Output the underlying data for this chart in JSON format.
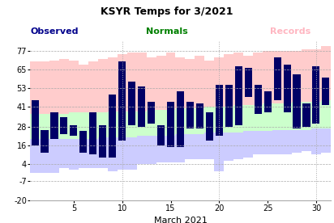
{
  "title": "KSYR Temps for 3/2021",
  "xlabel": "March 2021",
  "legend_labels": [
    "Observed",
    "Normals",
    "Records"
  ],
  "ylim": [
    -20,
    84
  ],
  "yticks": [
    -20,
    -7,
    4,
    16,
    28,
    41,
    53,
    65,
    77
  ],
  "days": [
    1,
    2,
    3,
    4,
    5,
    6,
    7,
    8,
    9,
    10,
    11,
    12,
    13,
    14,
    15,
    16,
    17,
    18,
    19,
    20,
    21,
    22,
    23,
    24,
    25,
    26,
    27,
    28,
    29,
    30,
    31
  ],
  "obs_high": [
    45,
    26,
    37,
    34,
    29,
    25,
    37,
    29,
    49,
    70,
    57,
    54,
    44,
    29,
    44,
    51,
    44,
    43,
    37,
    55,
    55,
    67,
    66,
    55,
    51,
    73,
    68,
    62,
    43,
    67,
    60
  ],
  "obs_low": [
    16,
    11,
    20,
    23,
    22,
    11,
    10,
    8,
    8,
    19,
    29,
    28,
    30,
    16,
    15,
    15,
    27,
    27,
    19,
    22,
    28,
    29,
    47,
    36,
    37,
    45,
    37,
    27,
    28,
    30,
    42
  ],
  "norm_high": [
    36,
    36,
    36,
    36,
    37,
    37,
    37,
    37,
    38,
    38,
    38,
    38,
    39,
    39,
    39,
    40,
    40,
    40,
    41,
    41,
    41,
    42,
    42,
    42,
    43,
    43,
    43,
    44,
    44,
    44,
    45
  ],
  "norm_low": [
    20,
    20,
    20,
    20,
    20,
    20,
    20,
    21,
    21,
    21,
    21,
    22,
    22,
    22,
    22,
    23,
    23,
    23,
    24,
    24,
    24,
    24,
    25,
    25,
    25,
    26,
    26,
    26,
    26,
    27,
    27
  ],
  "rec_high": [
    70,
    70,
    71,
    72,
    71,
    68,
    70,
    72,
    73,
    75,
    76,
    76,
    73,
    74,
    76,
    73,
    72,
    74,
    71,
    73,
    75,
    76,
    74,
    76,
    77,
    77,
    77,
    77,
    78,
    78,
    80
  ],
  "rec_low": [
    -2,
    -2,
    -2,
    1,
    0,
    1,
    1,
    1,
    -1,
    0,
    0,
    4,
    4,
    5,
    5,
    5,
    7,
    7,
    7,
    -1,
    6,
    7,
    8,
    10,
    10,
    10,
    10,
    11,
    12,
    10,
    11
  ],
  "bg_color": "white",
  "record_fill": "#ffcccc",
  "normal_fill": "#ccffcc",
  "record_low_fill": "#ccccff",
  "bar_color": "#000066",
  "grid_color": "#aaaaaa",
  "vert_grid_days": [
    10,
    20,
    30
  ],
  "title_fontsize": 9,
  "legend_fontsize": 8,
  "tick_fontsize": 7,
  "xlabel_fontsize": 8
}
